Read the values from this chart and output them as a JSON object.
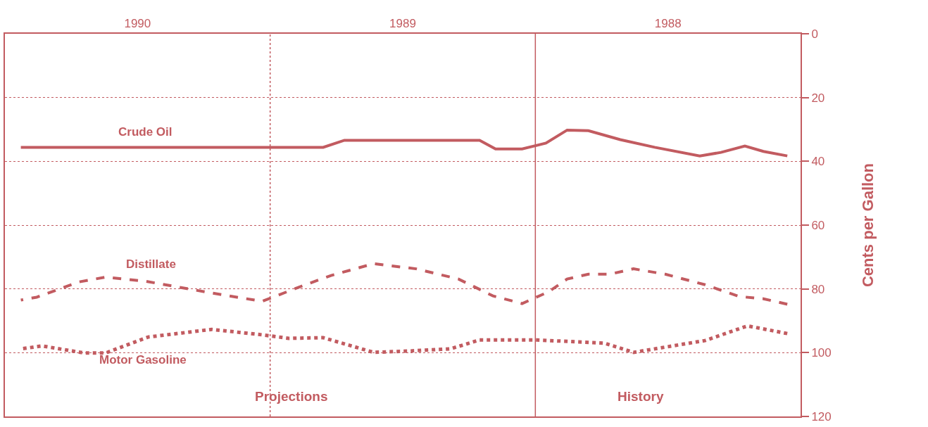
{
  "chart_data": {
    "type": "line",
    "ylabel": "Cents per Gallon",
    "xlim": [
      1991,
      1988
    ],
    "xticks": [
      {
        "value": 1988.5,
        "label": "1988"
      },
      {
        "value": 1989.5,
        "label": "1989"
      },
      {
        "value": 1990.5,
        "label": "1990"
      }
    ],
    "ylim": [
      120,
      0
    ],
    "yticks": [
      0,
      20,
      40,
      60,
      80,
      100,
      120
    ],
    "grid": "y",
    "legend": false,
    "series": [
      {
        "name": "Crude Oil",
        "color": "#c25b60",
        "line_style": "solid",
        "x": [
          1988.05,
          1988.14,
          1988.21,
          1988.3,
          1988.38,
          1988.55,
          1988.68,
          1988.8,
          1988.88,
          1988.96,
          1989.05,
          1989.15,
          1989.21,
          1989.29,
          1989.72,
          1989.8,
          1990.94
        ],
        "values": [
          38.3,
          36.9,
          35.2,
          37.2,
          38.3,
          35.6,
          33.2,
          30.4,
          30.2,
          34.3,
          36.1,
          36.1,
          33.4,
          33.4,
          33.4,
          35.6,
          35.6
        ]
      },
      {
        "name": "Distillate",
        "color": "#c25b60",
        "line_style": "dashed",
        "x": [
          1988.05,
          1988.14,
          1988.23,
          1988.36,
          1988.51,
          1988.63,
          1988.72,
          1988.8,
          1988.88,
          1988.95,
          1989.05,
          1989.16,
          1989.29,
          1989.45,
          1989.61,
          1989.77,
          1989.88,
          1990.03,
          1990.22,
          1990.47,
          1990.62,
          1990.72,
          1990.88,
          1990.94
        ],
        "values": [
          84.8,
          83.1,
          82.4,
          78.7,
          75.4,
          73.7,
          75.4,
          75.4,
          76.9,
          80.9,
          84.6,
          82.2,
          76.9,
          73.7,
          72.1,
          75.8,
          79.1,
          83.9,
          81.3,
          77.6,
          76.3,
          77.8,
          82.6,
          83.5
        ]
      },
      {
        "name": "Motor Gasoline",
        "color": "#c25b60",
        "line_style": "dotted",
        "x": [
          1988.05,
          1988.2,
          1988.36,
          1988.63,
          1988.74,
          1989.0,
          1989.21,
          1989.32,
          1989.48,
          1989.61,
          1989.8,
          1989.93,
          1990.03,
          1990.22,
          1990.46,
          1990.62,
          1990.7,
          1990.86,
          1990.94
        ],
        "values": [
          94.0,
          91.6,
          96.2,
          99.9,
          97.0,
          96.0,
          96.0,
          98.8,
          99.5,
          99.9,
          95.3,
          95.5,
          94.4,
          92.7,
          95.1,
          100.1,
          100.1,
          97.9,
          98.8
        ]
      }
    ],
    "ref_lines": [
      {
        "axis": "x",
        "value": 1989,
        "line_style": "solid",
        "color": "#c25b60"
      },
      {
        "axis": "x",
        "value": 1990,
        "line_style": "dotted",
        "color": "#c25b60"
      }
    ],
    "annotations": [
      "History",
      "Projections"
    ]
  }
}
